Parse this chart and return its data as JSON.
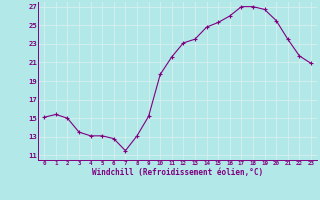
{
  "x": [
    0,
    1,
    2,
    3,
    4,
    5,
    6,
    7,
    8,
    9,
    10,
    11,
    12,
    13,
    14,
    15,
    16,
    17,
    18,
    19,
    20,
    21,
    22,
    23
  ],
  "y": [
    15.1,
    15.4,
    15.0,
    13.5,
    13.1,
    13.1,
    12.8,
    11.5,
    13.1,
    15.2,
    19.7,
    21.6,
    23.1,
    23.5,
    24.8,
    25.3,
    26.0,
    27.0,
    27.0,
    26.7,
    25.5,
    23.5,
    21.7,
    20.9
  ],
  "line_color": "#800080",
  "marker": "+",
  "marker_size": 3.5,
  "marker_lw": 0.8,
  "bg_color": "#b3e8e8",
  "grid_color": "#d8f0f0",
  "xlabel": "Windchill (Refroidissement éolien,°C)",
  "xlabel_color": "#800080",
  "tick_color": "#800080",
  "axis_color": "#800080",
  "ylim": [
    10.5,
    27.5
  ],
  "yticks": [
    11,
    13,
    15,
    17,
    19,
    21,
    23,
    25,
    27
  ],
  "xticks": [
    0,
    1,
    2,
    3,
    4,
    5,
    6,
    7,
    8,
    9,
    10,
    11,
    12,
    13,
    14,
    15,
    16,
    17,
    18,
    19,
    20,
    21,
    22,
    23
  ],
  "xlim": [
    -0.5,
    23.5
  ],
  "font_size_x": 4.2,
  "font_size_y": 5.2,
  "font_size_label": 5.5
}
